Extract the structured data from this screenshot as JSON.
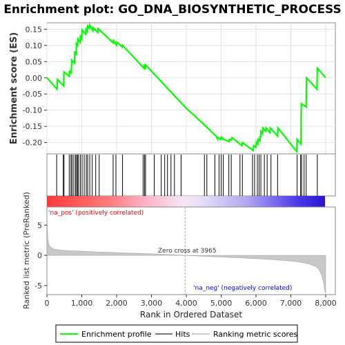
{
  "chart_data": {
    "type": "line",
    "title": "Enrichment plot: GO_DNA_BIOSYNTHETIC_PROCESS",
    "es_panel": {
      "ylabel": "Enrichment score (ES)",
      "ylim": [
        -0.235,
        0.17
      ],
      "yticks": [
        0.15,
        0.1,
        0.05,
        0.0,
        -0.05,
        -0.1,
        -0.15,
        -0.2
      ],
      "ytick_labels": [
        "0.15",
        "0.10",
        "0.05",
        "0.00",
        "-0.05",
        "-0.10",
        "-0.15",
        "-0.20"
      ],
      "series": [
        {
          "name": "Enrichment profile",
          "color": "#00ff00",
          "x": [
            0,
            290,
            300,
            480,
            490,
            640,
            650,
            700,
            710,
            790,
            800,
            840,
            850,
            880,
            890,
            950,
            960,
            1000,
            1010,
            1110,
            1120,
            1160,
            1170,
            1220,
            1230,
            1320,
            1330,
            1460,
            1470,
            1900,
            1910,
            2000,
            2010,
            2160,
            2170,
            2780,
            2790,
            2820,
            2830,
            3960,
            4560,
            4570,
            4600,
            4610,
            4850,
            4860,
            4900,
            4910,
            4980,
            4990,
            5000,
            5010,
            5050,
            5060,
            5230,
            5240,
            5300,
            5310,
            5600,
            5610,
            5920,
            5930,
            6000,
            6010,
            6050,
            6060,
            6110,
            6120,
            6130,
            6140,
            6190,
            6200,
            6280,
            6290,
            6400,
            6410,
            6620,
            6630,
            7170,
            7180,
            7290,
            7300,
            7440,
            7450,
            7750,
            7760,
            8000
          ],
          "y": [
            0.0,
            -0.035,
            -0.005,
            -0.025,
            0.018,
            0.005,
            0.02,
            0.015,
            0.055,
            0.045,
            0.082,
            0.07,
            0.105,
            0.1,
            0.12,
            0.11,
            0.128,
            0.12,
            0.148,
            0.135,
            0.15,
            0.143,
            0.16,
            0.153,
            0.163,
            0.145,
            0.155,
            0.14,
            0.152,
            0.108,
            0.115,
            0.1,
            0.11,
            0.095,
            0.1,
            0.03,
            0.035,
            0.025,
            0.04,
            -0.09,
            -0.15,
            -0.15,
            -0.155,
            -0.155,
            -0.18,
            -0.18,
            -0.19,
            -0.185,
            -0.19,
            -0.19,
            -0.183,
            -0.183,
            -0.19,
            -0.19,
            -0.197,
            -0.19,
            -0.192,
            -0.185,
            -0.21,
            -0.2,
            -0.225,
            -0.21,
            -0.215,
            -0.198,
            -0.205,
            -0.19,
            -0.195,
            -0.18,
            -0.185,
            -0.165,
            -0.172,
            -0.155,
            -0.165,
            -0.155,
            -0.17,
            -0.155,
            -0.18,
            -0.155,
            -0.228,
            -0.19,
            -0.205,
            -0.08,
            -0.09,
            0.0,
            -0.035,
            0.03,
            0.0
          ]
        }
      ]
    },
    "hits": {
      "name": "Hits",
      "color": "#000000",
      "positions": [
        280,
        470,
        490,
        640,
        690,
        720,
        770,
        820,
        850,
        880,
        910,
        960,
        1010,
        1070,
        1130,
        1170,
        1230,
        1300,
        1400,
        1500,
        1900,
        1980,
        2170,
        2760,
        2800,
        2830,
        3080,
        3280,
        3380,
        3460,
        3560,
        3660,
        3850,
        4520,
        4590,
        4820,
        4940,
        5000,
        5060,
        5220,
        5290,
        5540,
        5610,
        5900,
        5960,
        6040,
        6090,
        6140,
        6240,
        6320,
        6430,
        6620,
        7180,
        7280,
        7310,
        7380,
        7440,
        7760
      ]
    },
    "rank_bar": {
      "pos_label": "'na_pos' (positively correlated)",
      "neg_label": "'na_neg' (negatively correlated)",
      "pos_color": "#ff0000",
      "neg_color": "#0000ff"
    },
    "metric_panel": {
      "ylabel": "Ranked list metric (PreRanked)",
      "ylim": [
        -6.5,
        8
      ],
      "yticks": [
        5,
        0,
        -5
      ],
      "ytick_labels": [
        "5",
        "0",
        "-5"
      ],
      "zero_cross": 3965,
      "zero_cross_label": "Zero cross at 3965",
      "series": {
        "name": "Ranking metric scores",
        "color": "#c0c0c0",
        "x": [
          0,
          10,
          30,
          60,
          100,
          200,
          400,
          700,
          1000,
          1500,
          2000,
          2500,
          3000,
          3500,
          3965,
          4500,
          5000,
          5500,
          6000,
          6500,
          7000,
          7300,
          7500,
          7700,
          7800,
          7880,
          7940,
          7970,
          8000
        ],
        "y": [
          7.8,
          4.5,
          2.5,
          1.8,
          1.4,
          1.05,
          0.85,
          0.75,
          0.68,
          0.55,
          0.45,
          0.35,
          0.25,
          0.15,
          0.0,
          -0.15,
          -0.28,
          -0.4,
          -0.55,
          -0.7,
          -0.95,
          -1.15,
          -1.4,
          -1.8,
          -2.3,
          -3.2,
          -4.5,
          -5.8,
          -6.3
        ]
      }
    },
    "xaxis": {
      "label": "Rank in Ordered Dataset",
      "xlim": [
        0,
        8000
      ],
      "ticks": [
        0,
        1000,
        2000,
        3000,
        4000,
        5000,
        6000,
        7000,
        8000
      ],
      "tick_labels": [
        "0",
        "1,000",
        "2,000",
        "3,000",
        "4,000",
        "5,000",
        "6,000",
        "7,000",
        "8,000"
      ]
    },
    "legend": {
      "placement": "bottom",
      "items": [
        {
          "label": "Enrichment profile",
          "color": "#00ff00"
        },
        {
          "label": "Hits",
          "color": "#777777"
        },
        {
          "label": "Ranking metric scores",
          "color": "#cccccc"
        }
      ]
    }
  }
}
